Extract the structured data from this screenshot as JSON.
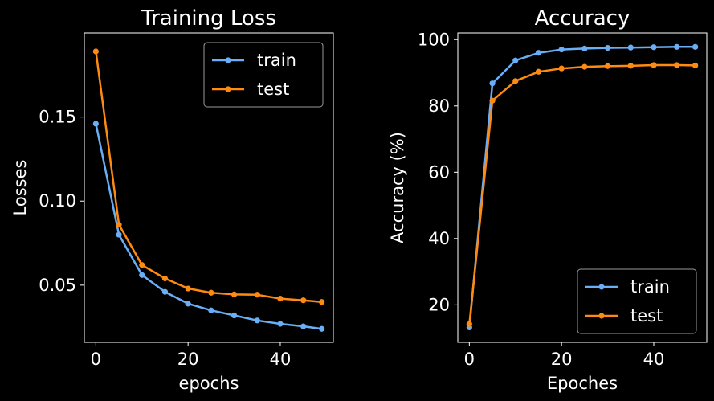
{
  "chart_data": [
    {
      "type": "line",
      "title": "Training Loss",
      "xlabel": "epochs",
      "ylabel": "Losses",
      "xlim": [
        -2.5,
        51.5
      ],
      "ylim": [
        0.016,
        0.2
      ],
      "xticks": [
        0,
        20,
        40
      ],
      "xtick_labels": [
        "0",
        "20",
        "40"
      ],
      "yticks": [
        0.05,
        0.1,
        0.15
      ],
      "ytick_labels": [
        "0.05",
        "0.10",
        "0.15"
      ],
      "grid": false,
      "legend_position": "top-right",
      "x": [
        0,
        5,
        10,
        15,
        20,
        25,
        30,
        35,
        40,
        45,
        49
      ],
      "series": [
        {
          "name": "train",
          "color": "#6aaef5",
          "values": [
            0.146,
            0.08,
            0.056,
            0.046,
            0.039,
            0.035,
            0.032,
            0.029,
            0.027,
            0.0255,
            0.024
          ]
        },
        {
          "name": "test",
          "color": "#ff8a12",
          "values": [
            0.189,
            0.086,
            0.062,
            0.054,
            0.048,
            0.0455,
            0.0445,
            0.0443,
            0.042,
            0.041,
            0.04
          ]
        }
      ]
    },
    {
      "type": "line",
      "title": "Accuracy",
      "xlabel": "Epoches",
      "ylabel": "Accuracy (%)",
      "xlim": [
        -2.5,
        51.5
      ],
      "ylim": [
        8.7,
        102.0
      ],
      "xticks": [
        0,
        20,
        40
      ],
      "xtick_labels": [
        "0",
        "20",
        "40"
      ],
      "yticks": [
        20,
        40,
        60,
        80,
        100
      ],
      "ytick_labels": [
        "20",
        "40",
        "60",
        "80",
        "100"
      ],
      "grid": false,
      "legend_position": "bottom-right",
      "x": [
        0,
        5,
        10,
        15,
        20,
        25,
        30,
        35,
        40,
        45,
        49
      ],
      "series": [
        {
          "name": "train",
          "color": "#6aaef5",
          "values": [
            13.2,
            86.8,
            93.7,
            96.0,
            97.0,
            97.3,
            97.5,
            97.6,
            97.7,
            97.8,
            97.8
          ]
        },
        {
          "name": "test",
          "color": "#ff8a12",
          "values": [
            14.2,
            81.6,
            87.5,
            90.3,
            91.3,
            91.8,
            92.0,
            92.1,
            92.3,
            92.3,
            92.2
          ]
        }
      ]
    }
  ]
}
